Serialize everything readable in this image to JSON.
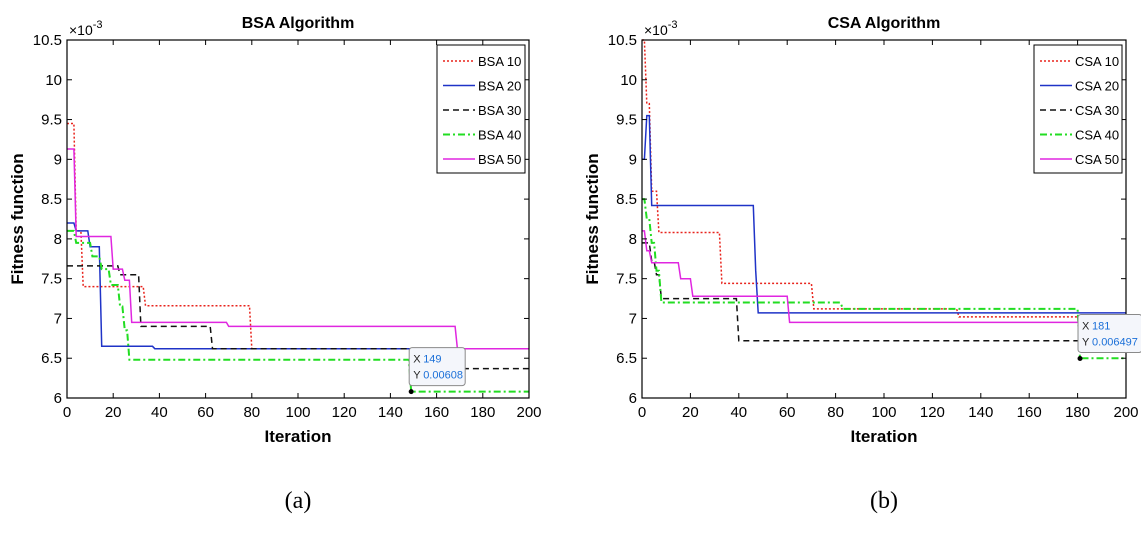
{
  "chart_data": [
    {
      "type": "line",
      "title": "BSA Algorithm",
      "xlabel": "Iteration",
      "ylabel": "Fitness function",
      "y_exponent_label": "×10",
      "y_exponent_power": "-3",
      "xlim": [
        0,
        200
      ],
      "ylim": [
        6,
        10.5
      ],
      "xticks": [
        "0",
        "20",
        "40",
        "60",
        "80",
        "100",
        "120",
        "140",
        "160",
        "180",
        "200"
      ],
      "yticks": [
        "6",
        "6.5",
        "7",
        "7.5",
        "8",
        "8.5",
        "9",
        "9.5",
        "10",
        "10.5"
      ],
      "legend_position": "top-right",
      "caption": "(a)",
      "datatip": {
        "x": 149,
        "y": 6.08,
        "x_label": "X",
        "y_label": "Y",
        "x_text": "149",
        "y_text": "0.00608"
      },
      "series": [
        {
          "name": "BSA 10",
          "color": "#e8231c",
          "dash": "dotted",
          "x": [
            0,
            3,
            4,
            6,
            7,
            33,
            34,
            79,
            80,
            200
          ],
          "y": [
            9.45,
            9.45,
            8.1,
            8.1,
            7.4,
            7.4,
            7.16,
            7.16,
            6.62,
            6.62
          ]
        },
        {
          "name": "BSA 20",
          "color": "#1f33c7",
          "dash": "solid",
          "x": [
            0,
            3,
            4,
            9,
            10,
            14,
            15,
            37,
            38,
            200
          ],
          "y": [
            8.2,
            8.2,
            8.1,
            8.1,
            7.9,
            7.9,
            6.65,
            6.65,
            6.62,
            6.62
          ]
        },
        {
          "name": "BSA 30",
          "color": "#111111",
          "dash": "dashed",
          "x": [
            0,
            22,
            23,
            31,
            32,
            34,
            35,
            62,
            63,
            149,
            150,
            200
          ],
          "y": [
            7.66,
            7.66,
            7.55,
            7.55,
            6.9,
            6.9,
            6.9,
            6.9,
            6.62,
            6.62,
            6.37,
            6.37
          ]
        },
        {
          "name": "BSA 40",
          "color": "#22dd22",
          "dash": "dashdot",
          "x": [
            0,
            3,
            4,
            10,
            11,
            14,
            15,
            18,
            19,
            22,
            23,
            24,
            25,
            26,
            27,
            148,
            149,
            200
          ],
          "y": [
            8.1,
            8.1,
            7.95,
            7.95,
            7.78,
            7.78,
            7.62,
            7.62,
            7.42,
            7.42,
            7.15,
            7.15,
            6.85,
            6.85,
            6.48,
            6.48,
            6.08,
            6.08
          ]
        },
        {
          "name": "BSA 50",
          "color": "#e026e0",
          "dash": "solid",
          "x": [
            0,
            3,
            4,
            19,
            20,
            24,
            25,
            27,
            28,
            69,
            70,
            168,
            169,
            200
          ],
          "y": [
            9.13,
            9.13,
            8.03,
            8.03,
            7.62,
            7.62,
            7.48,
            7.48,
            6.95,
            6.95,
            6.9,
            6.9,
            6.62,
            6.62
          ]
        }
      ]
    },
    {
      "type": "line",
      "title": "CSA Algorithm",
      "xlabel": "Iteration",
      "ylabel": "Fitness function",
      "y_exponent_label": "×10",
      "y_exponent_power": "-3",
      "xlim": [
        0,
        200
      ],
      "ylim": [
        6,
        10.5
      ],
      "xticks": [
        "0",
        "20",
        "40",
        "60",
        "80",
        "100",
        "120",
        "140",
        "160",
        "180",
        "200"
      ],
      "yticks": [
        "6",
        "6.5",
        "7",
        "7.5",
        "8",
        "8.5",
        "9",
        "9.5",
        "10",
        "10.5"
      ],
      "legend_position": "top-right",
      "caption": "(b)",
      "datatip": {
        "x": 181,
        "y": 6.497,
        "x_label": "X",
        "y_label": "Y",
        "x_text": "181",
        "y_text": "0.006497"
      },
      "series": [
        {
          "name": "CSA 10",
          "color": "#e8231c",
          "dash": "dotted",
          "x": [
            0,
            1,
            2,
            3,
            4,
            6,
            7,
            32,
            33,
            70,
            71,
            130,
            131,
            197,
            198,
            200
          ],
          "y": [
            10.5,
            10.5,
            9.7,
            9.7,
            8.6,
            8.6,
            8.08,
            8.08,
            7.44,
            7.44,
            7.12,
            7.12,
            7.02,
            7.02,
            6.72,
            6.72
          ]
        },
        {
          "name": "CSA 20",
          "color": "#1f33c7",
          "dash": "solid",
          "x": [
            0,
            1,
            2,
            3,
            4,
            46,
            47,
            48,
            200
          ],
          "y": [
            9.0,
            9.0,
            9.55,
            9.55,
            8.42,
            8.42,
            7.6,
            7.07,
            7.07
          ]
        },
        {
          "name": "CSA 30",
          "color": "#111111",
          "dash": "dashed",
          "x": [
            0,
            3,
            4,
            5,
            6,
            7,
            8,
            39,
            40,
            200
          ],
          "y": [
            7.95,
            7.95,
            7.72,
            7.72,
            7.55,
            7.55,
            7.25,
            7.25,
            6.72,
            6.72
          ]
        },
        {
          "name": "CSA 40",
          "color": "#22dd22",
          "dash": "dashdot",
          "x": [
            0,
            1,
            2,
            3,
            4,
            5,
            6,
            7,
            8,
            82,
            83,
            180,
            181,
            200
          ],
          "y": [
            8.5,
            8.5,
            8.25,
            8.25,
            7.95,
            7.95,
            7.6,
            7.6,
            7.2,
            7.2,
            7.12,
            7.12,
            6.5,
            6.5
          ]
        },
        {
          "name": "CSA 50",
          "color": "#e026e0",
          "dash": "solid",
          "x": [
            0,
            1,
            2,
            3,
            4,
            15,
            16,
            20,
            21,
            60,
            61,
            200
          ],
          "y": [
            8.1,
            8.1,
            7.85,
            7.85,
            7.7,
            7.7,
            7.5,
            7.5,
            7.28,
            7.28,
            6.95,
            6.95
          ]
        }
      ]
    }
  ]
}
